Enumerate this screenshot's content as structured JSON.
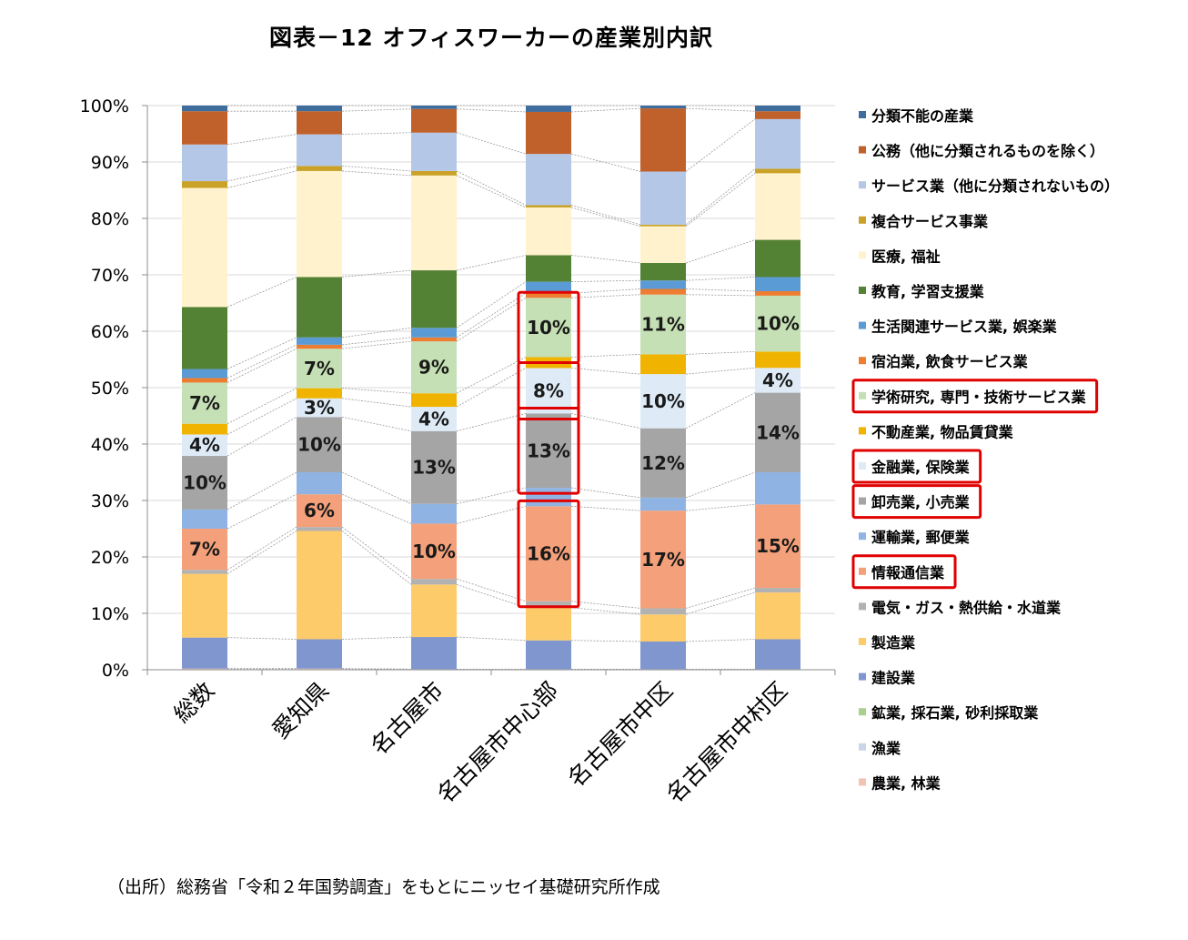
{
  "title": "図表－12 オフィスワーカーの産業別内訳",
  "source": "（出所）総務省「令和２年国勢調査」をもとにニッセイ基礎研究所作成",
  "chart_data": {
    "type": "bar",
    "stacked": true,
    "categories": [
      "総数",
      "愛知県",
      "名古屋市",
      "名古屋市中心部",
      "名古屋市中区",
      "名古屋市中村区"
    ],
    "ylim": [
      0,
      100
    ],
    "y_ticks": [
      "0%",
      "10%",
      "20%",
      "30%",
      "40%",
      "50%",
      "60%",
      "70%",
      "80%",
      "90%",
      "100%"
    ],
    "grid": true,
    "legend_position": "right",
    "series": [
      {
        "name": "農業, 林業",
        "color": "#f2c3b4",
        "values": [
          0.2,
          0.2,
          0.1,
          0.1,
          0.1,
          0.1
        ]
      },
      {
        "name": "漁業",
        "color": "#c9d6ea",
        "values": [
          0.0,
          0.0,
          0.0,
          0.0,
          0.0,
          0.0
        ]
      },
      {
        "name": "鉱業, 採石業, 砂利採取業",
        "color": "#a9d18e",
        "values": [
          0.0,
          0.0,
          0.0,
          0.0,
          0.0,
          0.0
        ]
      },
      {
        "name": "建設業",
        "color": "#7f96cf",
        "values": [
          5.5,
          5.2,
          5.7,
          5.0,
          4.9,
          5.3
        ]
      },
      {
        "name": "製造業",
        "color": "#fecb6a",
        "values": [
          11.3,
          19.2,
          9.3,
          5.7,
          4.8,
          8.3
        ]
      },
      {
        "name": "電気・ガス・熱供給・水道業",
        "color": "#b2b2b2",
        "values": [
          0.7,
          0.7,
          1.0,
          1.1,
          1.1,
          0.8
        ]
      },
      {
        "name": "情報通信業",
        "color": "#f4a07a",
        "values": [
          7.3,
          5.8,
          9.8,
          16.5,
          17.3,
          14.8
        ]
      },
      {
        "name": "運輸業, 郵便業",
        "color": "#8fb4e3",
        "values": [
          3.4,
          3.9,
          3.5,
          3.2,
          2.3,
          5.7
        ]
      },
      {
        "name": "卸売業, 小売業",
        "color": "#a5a5a5",
        "values": [
          9.5,
          9.8,
          12.9,
          12.9,
          12.3,
          14.1
        ]
      },
      {
        "name": "金融業, 保険業",
        "color": "#deebf7",
        "values": [
          3.8,
          3.3,
          4.3,
          7.9,
          9.6,
          4.4
        ]
      },
      {
        "name": "不動産業, 物品賃貸業",
        "color": "#f0b400",
        "values": [
          1.9,
          1.8,
          2.4,
          1.9,
          3.5,
          2.9
        ]
      },
      {
        "name": "学術研究, 専門・技術サービス業",
        "color": "#c5e0b4",
        "values": [
          7.3,
          7.0,
          9.2,
          10.3,
          10.6,
          9.9
        ]
      },
      {
        "name": "宿泊業, 飲食サービス業",
        "color": "#ed7d31",
        "values": [
          0.8,
          0.7,
          0.7,
          0.8,
          1.0,
          0.8
        ]
      },
      {
        "name": "生活関連サービス業, 娯楽業",
        "color": "#5b9bd5",
        "values": [
          1.6,
          1.3,
          1.7,
          2.0,
          1.5,
          2.5
        ]
      },
      {
        "name": "教育, 学習支援業",
        "color": "#548235",
        "values": [
          11.0,
          10.7,
          10.2,
          4.6,
          3.1,
          6.6
        ]
      },
      {
        "name": "医療, 福祉",
        "color": "#fff2cc",
        "values": [
          21.1,
          18.8,
          16.8,
          8.3,
          6.5,
          11.8
        ]
      },
      {
        "name": "複合サービス事業",
        "color": "#c9a227",
        "values": [
          1.2,
          0.9,
          0.8,
          0.4,
          0.3,
          0.8
        ]
      },
      {
        "name": "サービス業（他に分類されないもの）",
        "color": "#b4c7e7",
        "values": [
          6.5,
          5.6,
          6.8,
          8.9,
          9.4,
          8.8
        ]
      },
      {
        "name": "公務（他に分類されるものを除く）",
        "color": "#c0602b",
        "values": [
          5.9,
          4.1,
          4.2,
          7.3,
          11.2,
          1.4
        ]
      },
      {
        "name": "分類不能の産業",
        "color": "#3f6e9e",
        "values": [
          1.0,
          1.0,
          0.6,
          1.1,
          0.5,
          1.0
        ]
      }
    ],
    "data_labels": [
      {
        "series": "情報通信業",
        "labels": [
          "7%",
          "6%",
          "10%",
          "16%",
          "17%",
          "15%"
        ]
      },
      {
        "series": "卸売業, 小売業",
        "labels": [
          "10%",
          "10%",
          "13%",
          "13%",
          "12%",
          "14%"
        ]
      },
      {
        "series": "金融業, 保険業",
        "labels": [
          "4%",
          "3%",
          "4%",
          "8%",
          "10%",
          "4%"
        ]
      },
      {
        "series": "学術研究, 専門・技術サービス業",
        "labels": [
          "7%",
          "7%",
          "9%",
          "10%",
          "11%",
          "10%"
        ]
      }
    ],
    "highlight_color": "#e00000",
    "highlighted_category": "名古屋市中心部",
    "highlighted_series": [
      "情報通信業",
      "卸売業, 小売業",
      "金融業, 保険業",
      "学術研究, 専門・技術サービス業"
    ]
  }
}
